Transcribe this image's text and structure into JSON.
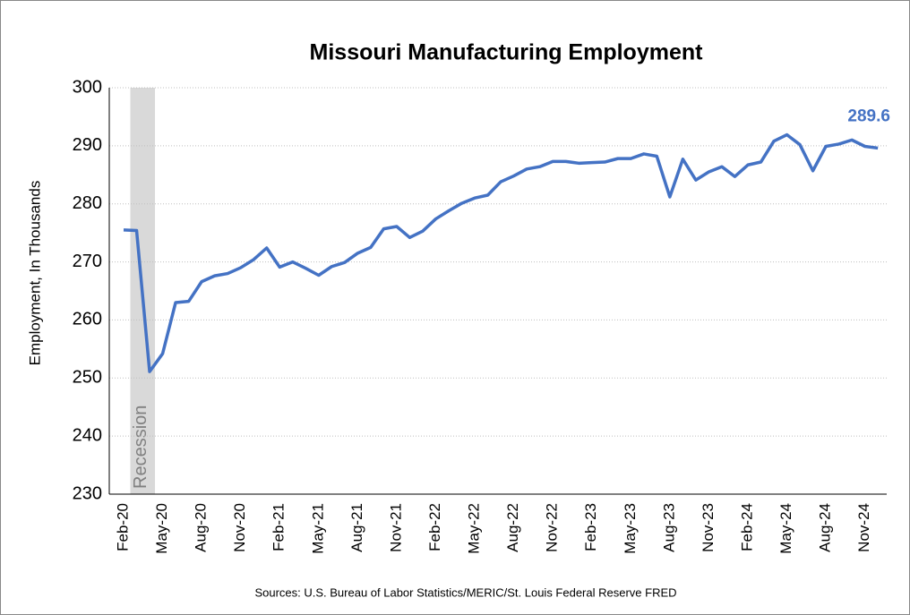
{
  "chart_data": {
    "type": "line",
    "title": "Missouri Manufacturing Employment",
    "y_label": "Employment, In Thousands",
    "source": "Sources: U.S. Bureau of Labor Statistics/MERIC/St. Louis Federal Reserve FRED",
    "categories": [
      "Feb-20",
      null,
      null,
      "May-20",
      null,
      null,
      "Aug-20",
      null,
      null,
      "Nov-20",
      null,
      null,
      "Feb-21",
      null,
      null,
      "May-21",
      null,
      null,
      "Aug-21",
      null,
      null,
      "Nov-21",
      null,
      null,
      "Feb-22",
      null,
      null,
      "May-22",
      null,
      null,
      "Aug-22",
      null,
      null,
      "Nov-22",
      null,
      null,
      "Feb-23",
      null,
      null,
      "May-23",
      null,
      null,
      "Aug-23",
      null,
      null,
      "Nov-23",
      null,
      null,
      "Feb-24",
      null,
      null,
      "May-24",
      null,
      null,
      "Aug-24",
      null,
      null,
      "Nov-24",
      null
    ],
    "series": [
      {
        "name": "Missouri Manufacturing Employment",
        "color": "#4472c4",
        "values": [
          275.5,
          275.4,
          251.1,
          254.2,
          263.0,
          263.2,
          266.6,
          267.6,
          268.0,
          269.0,
          270.4,
          272.4,
          269.1,
          270.0,
          268.9,
          267.7,
          269.2,
          269.9,
          271.5,
          272.5,
          275.7,
          276.1,
          274.2,
          275.3,
          277.4,
          278.8,
          280.1,
          281.0,
          281.5,
          283.8,
          284.8,
          286.0,
          286.4,
          287.3,
          287.3,
          287.0,
          287.1,
          287.2,
          287.8,
          287.8,
          288.6,
          288.2,
          281.2,
          287.7,
          284.1,
          285.5,
          286.4,
          284.7,
          286.7,
          287.2,
          290.8,
          291.9,
          290.2,
          285.7,
          289.9,
          290.3,
          291.0,
          289.9,
          289.6
        ]
      }
    ],
    "recession": {
      "label": "Recession",
      "from_index": 1,
      "to_index": 2
    },
    "ylim": [
      230,
      300
    ],
    "yticks": [
      230,
      240,
      250,
      260,
      270,
      280,
      290,
      300
    ],
    "grid": true
  }
}
